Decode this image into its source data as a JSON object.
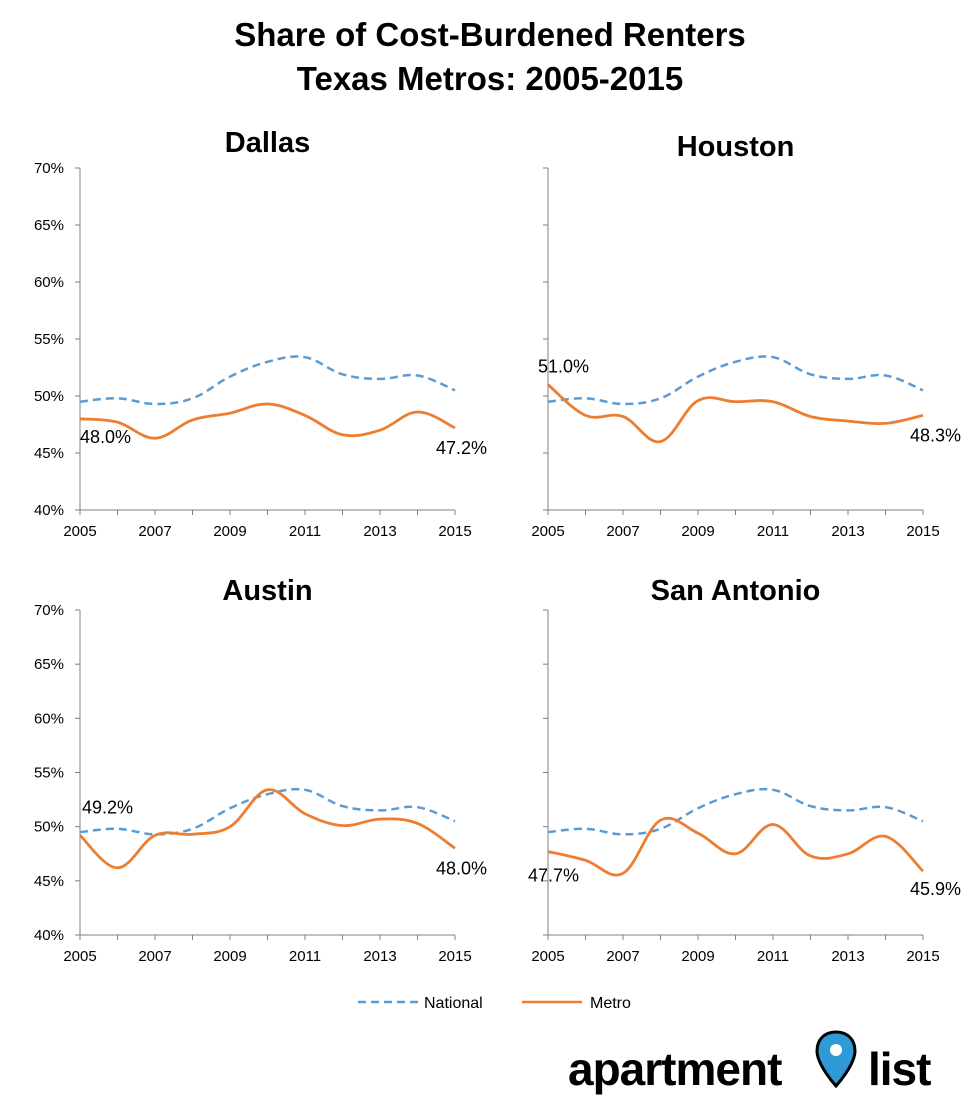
{
  "title_line1": "Share of Cost-Burdened Renters",
  "title_line2": "Texas Metros: 2005-2015",
  "legend": {
    "national": "National",
    "metro": "Metro"
  },
  "logo": {
    "part1": "apartment",
    "part2": "list",
    "pin_color": "#2E9BD6"
  },
  "colors": {
    "national": "#5B9BD5",
    "metro": "#ED7D31",
    "axis": "#808080"
  },
  "chart_data": [
    {
      "type": "line",
      "title": "Dallas",
      "x": [
        2005,
        2006,
        2007,
        2008,
        2009,
        2010,
        2011,
        2012,
        2013,
        2014,
        2015
      ],
      "x_ticks": [
        "2005",
        "2007",
        "2009",
        "2011",
        "2013",
        "2015"
      ],
      "y_ticks": [
        "40%",
        "45%",
        "50%",
        "55%",
        "60%",
        "65%",
        "70%"
      ],
      "ylim": [
        40,
        70
      ],
      "series": [
        {
          "name": "National",
          "values": [
            49.5,
            49.8,
            49.3,
            49.8,
            51.7,
            53.0,
            53.4,
            51.9,
            51.5,
            51.8,
            50.5
          ]
        },
        {
          "name": "Metro",
          "values": [
            48.0,
            47.7,
            46.3,
            47.9,
            48.5,
            49.3,
            48.3,
            46.6,
            47.0,
            48.6,
            47.2
          ]
        }
      ],
      "labels": [
        {
          "series": 1,
          "index": 0,
          "text": "48.0%"
        },
        {
          "series": 1,
          "index": 10,
          "text": "47.2%"
        }
      ]
    },
    {
      "type": "line",
      "title": "Houston",
      "x": [
        2005,
        2006,
        2007,
        2008,
        2009,
        2010,
        2011,
        2012,
        2013,
        2014,
        2015
      ],
      "x_ticks": [
        "2005",
        "2007",
        "2009",
        "2011",
        "2013",
        "2015"
      ],
      "y_ticks": [],
      "ylim": [
        40,
        70
      ],
      "series": [
        {
          "name": "National",
          "values": [
            49.5,
            49.8,
            49.3,
            49.8,
            51.7,
            53.0,
            53.4,
            51.9,
            51.5,
            51.8,
            50.5
          ]
        },
        {
          "name": "Metro",
          "values": [
            51.0,
            48.3,
            48.2,
            46.0,
            49.6,
            49.5,
            49.5,
            48.2,
            47.8,
            47.6,
            48.3
          ]
        }
      ],
      "labels": [
        {
          "series": 1,
          "index": 0,
          "text": "51.0%"
        },
        {
          "series": 1,
          "index": 10,
          "text": "48.3%"
        }
      ]
    },
    {
      "type": "line",
      "title": "Austin",
      "x": [
        2005,
        2006,
        2007,
        2008,
        2009,
        2010,
        2011,
        2012,
        2013,
        2014,
        2015
      ],
      "x_ticks": [
        "2005",
        "2007",
        "2009",
        "2011",
        "2013",
        "2015"
      ],
      "y_ticks": [
        "40%",
        "45%",
        "50%",
        "55%",
        "60%",
        "65%",
        "70%"
      ],
      "ylim": [
        40,
        70
      ],
      "series": [
        {
          "name": "National",
          "values": [
            49.5,
            49.8,
            49.3,
            49.8,
            51.7,
            53.0,
            53.4,
            51.9,
            51.5,
            51.8,
            50.5
          ]
        },
        {
          "name": "Metro",
          "values": [
            49.2,
            46.2,
            49.2,
            49.3,
            50.0,
            53.4,
            51.2,
            50.1,
            50.7,
            50.3,
            48.0
          ]
        }
      ],
      "labels": [
        {
          "series": 1,
          "index": 0,
          "text": "49.2%"
        },
        {
          "series": 1,
          "index": 10,
          "text": "48.0%"
        }
      ]
    },
    {
      "type": "line",
      "title": "San Antonio",
      "x": [
        2005,
        2006,
        2007,
        2008,
        2009,
        2010,
        2011,
        2012,
        2013,
        2014,
        2015
      ],
      "x_ticks": [
        "2005",
        "2007",
        "2009",
        "2011",
        "2013",
        "2015"
      ],
      "y_ticks": [],
      "ylim": [
        40,
        70
      ],
      "series": [
        {
          "name": "National",
          "values": [
            49.5,
            49.8,
            49.3,
            49.8,
            51.7,
            53.0,
            53.4,
            51.9,
            51.5,
            51.8,
            50.5
          ]
        },
        {
          "name": "Metro",
          "values": [
            47.7,
            46.9,
            45.7,
            50.6,
            49.4,
            47.5,
            50.2,
            47.3,
            47.5,
            49.1,
            45.9
          ]
        }
      ],
      "labels": [
        {
          "series": 1,
          "index": 0,
          "text": "47.7%"
        },
        {
          "series": 1,
          "index": 10,
          "text": "45.9%"
        }
      ]
    }
  ]
}
